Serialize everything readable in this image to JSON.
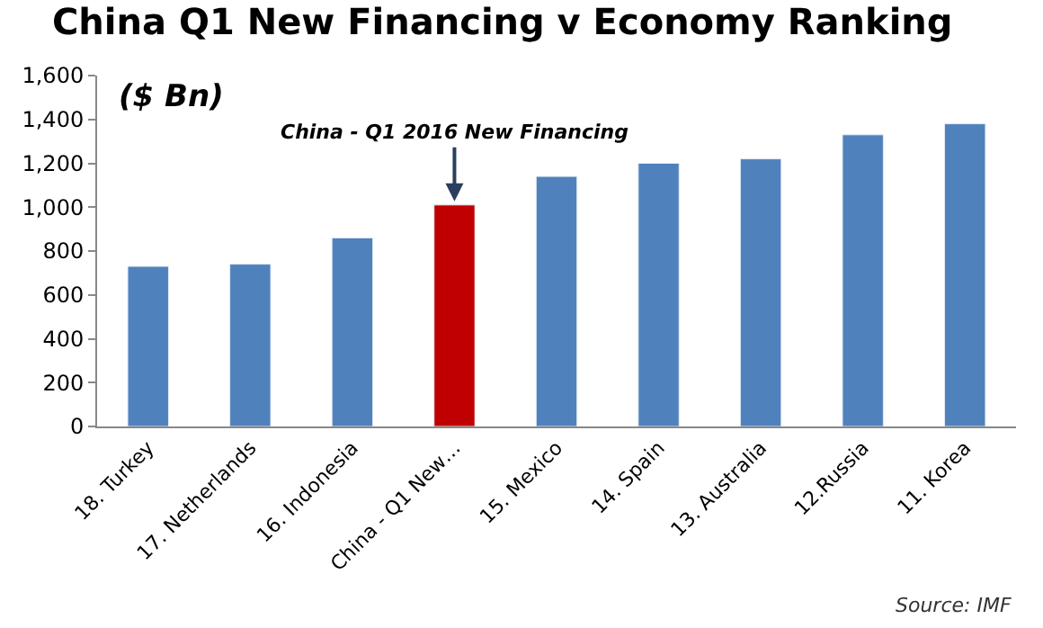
{
  "chart_data": {
    "type": "bar",
    "title": "China Q1 New Financing v Economy Ranking",
    "subtitle": "($ Bn)",
    "categories": [
      "18. Turkey",
      "17. Netherlands",
      "16. Indonesia",
      "China - Q1 New…",
      "15. Mexico",
      "14. Spain",
      "13. Australia",
      "12.Russia",
      "11. Korea"
    ],
    "values": [
      730,
      740,
      860,
      1010,
      1140,
      1200,
      1220,
      1330,
      1380
    ],
    "colors": [
      "#4f81bd",
      "#4f81bd",
      "#4f81bd",
      "#c00000",
      "#4f81bd",
      "#4f81bd",
      "#4f81bd",
      "#4f81bd",
      "#4f81bd"
    ],
    "ylim": [
      0,
      1600
    ],
    "yticks": [
      {
        "value": 0,
        "label": "0"
      },
      {
        "value": 200,
        "label": "200"
      },
      {
        "value": 400,
        "label": "400"
      },
      {
        "value": 600,
        "label": "600"
      },
      {
        "value": 800,
        "label": "800"
      },
      {
        "value": 1000,
        "label": "1,000"
      },
      {
        "value": 1200,
        "label": "1,200"
      },
      {
        "value": 1400,
        "label": "1,400"
      },
      {
        "value": 1600,
        "label": "1,600"
      }
    ],
    "annotations": [
      {
        "text": "China - Q1 2016 New Financing",
        "x": "China - Q1 New…",
        "y": 1010
      },
      "Source: IMF"
    ]
  }
}
